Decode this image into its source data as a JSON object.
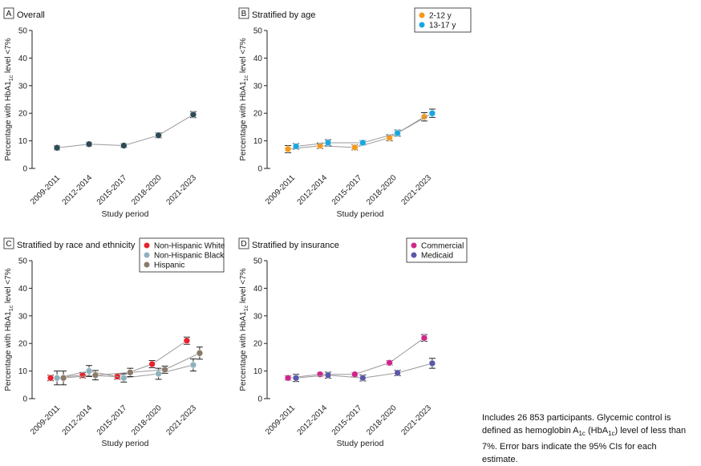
{
  "chart_data": [
    {
      "panel": "A",
      "type": "line",
      "title": "Overall",
      "xlabel": "Study period",
      "ylabel": "Percentage with HbA1c level <7%",
      "ylim": [
        0,
        50
      ],
      "yticks": [
        0,
        10,
        20,
        30,
        40,
        50
      ],
      "categories": [
        "2009-2011",
        "2012-2014",
        "2015-2017",
        "2018-2020",
        "2021-2023"
      ],
      "series": [
        {
          "name": "",
          "color": "#2d4a57",
          "values": [
            7.5,
            8.8,
            8.3,
            12.0,
            19.5
          ],
          "lower": [
            6.7,
            8.1,
            7.6,
            11.1,
            18.4
          ],
          "upper": [
            8.3,
            9.5,
            9.0,
            12.9,
            20.6
          ]
        }
      ],
      "legend": []
    },
    {
      "panel": "B",
      "type": "line",
      "title": "Stratified by age",
      "xlabel": "Study period",
      "ylabel": "Percentage with HbA1c level <7%",
      "ylim": [
        0,
        50
      ],
      "yticks": [
        0,
        10,
        20,
        30,
        40,
        50
      ],
      "categories": [
        "2009-2011",
        "2012-2014",
        "2015-2017",
        "2018-2020",
        "2021-2023"
      ],
      "series": [
        {
          "name": "2-12 y",
          "color": "#f39a1e",
          "values": [
            7.0,
            8.2,
            7.6,
            11.1,
            18.7
          ],
          "lower": [
            5.7,
            7.2,
            6.7,
            10.0,
            17.2
          ],
          "upper": [
            8.3,
            9.2,
            8.5,
            12.2,
            20.2
          ]
        },
        {
          "name": "13-17 y",
          "color": "#1aa7e0",
          "values": [
            8.0,
            9.3,
            9.3,
            12.8,
            20.0
          ],
          "lower": [
            7.0,
            8.2,
            8.5,
            11.7,
            18.5
          ],
          "upper": [
            9.0,
            10.4,
            10.1,
            13.9,
            21.5
          ]
        }
      ],
      "legend": [
        "2-12 y",
        "13-17 y"
      ]
    },
    {
      "panel": "C",
      "type": "line",
      "title": "Stratified by race and ethnicity",
      "xlabel": "Study period",
      "ylabel": "Percentage with HbA1c level <7%",
      "ylim": [
        0,
        50
      ],
      "yticks": [
        0,
        10,
        20,
        30,
        40,
        50
      ],
      "categories": [
        "2009-2011",
        "2012-2014",
        "2015-2017",
        "2018-2020",
        "2021-2023"
      ],
      "series": [
        {
          "name": "Non-Hispanic White",
          "color": "#e8232b",
          "values": [
            7.5,
            8.5,
            8.0,
            12.5,
            21.0
          ],
          "lower": [
            6.5,
            7.5,
            7.0,
            11.2,
            19.7
          ],
          "upper": [
            8.5,
            9.5,
            9.0,
            13.8,
            22.3
          ]
        },
        {
          "name": "Non-Hispanic Black",
          "color": "#8fb1bd",
          "values": [
            7.5,
            10.0,
            7.5,
            9.0,
            12.2
          ],
          "lower": [
            5.0,
            8.0,
            6.0,
            7.0,
            10.0
          ],
          "upper": [
            10.0,
            12.0,
            9.0,
            11.0,
            14.4
          ]
        },
        {
          "name": "Hispanic",
          "color": "#8a7a6a",
          "values": [
            7.5,
            8.5,
            9.5,
            10.5,
            16.5
          ],
          "lower": [
            5.0,
            6.8,
            8.0,
            9.2,
            14.3
          ],
          "upper": [
            10.0,
            10.2,
            11.0,
            11.8,
            18.7
          ]
        }
      ],
      "legend": [
        "Non-Hispanic White",
        "Non-Hispanic Black",
        "Hispanic"
      ]
    },
    {
      "panel": "D",
      "type": "line",
      "title": "Stratified by insurance",
      "xlabel": "Study period",
      "ylabel": "Percentage with HbA1c level <7%",
      "ylim": [
        0,
        50
      ],
      "yticks": [
        0,
        10,
        20,
        30,
        40,
        50
      ],
      "categories": [
        "2009-2011",
        "2012-2014",
        "2015-2017",
        "2018-2020",
        "2021-2023"
      ],
      "series": [
        {
          "name": "Commercial",
          "color": "#d0268c",
          "values": [
            7.5,
            8.8,
            8.8,
            13.0,
            22.0
          ],
          "lower": [
            6.7,
            8.1,
            8.1,
            12.2,
            20.8
          ],
          "upper": [
            8.3,
            9.5,
            9.5,
            13.8,
            23.2
          ]
        },
        {
          "name": "Medicaid",
          "color": "#5a58a8",
          "values": [
            7.5,
            8.5,
            7.5,
            9.3,
            12.8
          ],
          "lower": [
            6.2,
            7.4,
            6.4,
            8.3,
            11.0
          ],
          "upper": [
            8.8,
            9.6,
            8.6,
            10.3,
            14.6
          ]
        }
      ],
      "legend": [
        "Commercial",
        "Medicaid"
      ]
    }
  ],
  "note": {
    "line1": "Includes 26 853 participants. Glycemic control is",
    "line2": "defined as hemoglobin A",
    "line2_sub": "1c",
    "line2_mid": " (HbA",
    "line2_sub2": "1c",
    "line2_end": ") level of less than",
    "line3": "7%. Error bars indicate the 95% CIs for each estimate."
  },
  "colors": {
    "axis": "#222222",
    "line": "#9a9a9a",
    "error": "#222222"
  }
}
